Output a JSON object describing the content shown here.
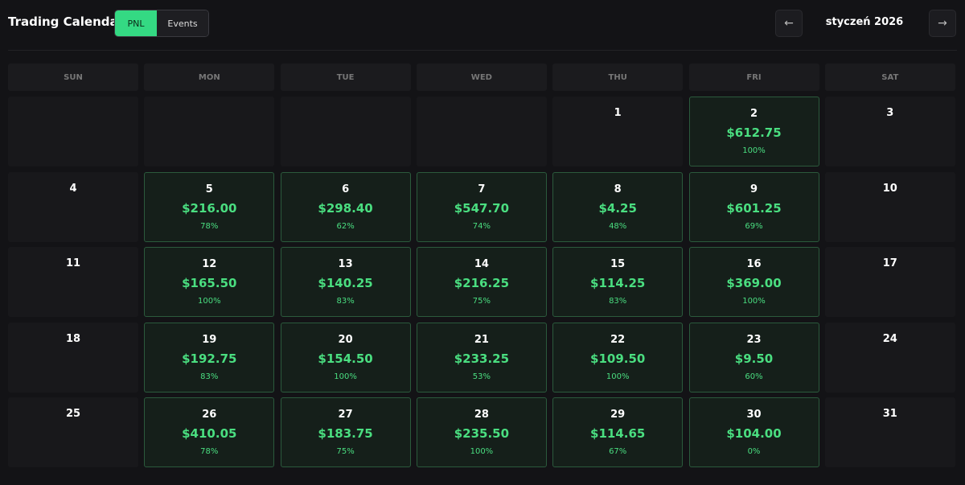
{
  "header": {
    "title": "Trading Calendar",
    "tabs": [
      "PNL",
      "Events"
    ],
    "active_tab": 0,
    "prev": "←",
    "next": "→",
    "month": "styczeń 2026"
  },
  "calendar": {
    "weekdays": [
      "SUN",
      "MON",
      "TUE",
      "WED",
      "THU",
      "FRI",
      "SAT"
    ],
    "weeks": [
      [
        null,
        null,
        null,
        null,
        {
          "day": 1
        },
        {
          "day": 2,
          "pnl": "$612.75",
          "rate": "100%"
        },
        {
          "day": 3
        }
      ],
      [
        {
          "day": 4
        },
        {
          "day": 5,
          "pnl": "$216.00",
          "rate": "78%"
        },
        {
          "day": 6,
          "pnl": "$298.40",
          "rate": "62%"
        },
        {
          "day": 7,
          "pnl": "$547.70",
          "rate": "74%"
        },
        {
          "day": 8,
          "pnl": "$4.25",
          "rate": "48%"
        },
        {
          "day": 9,
          "pnl": "$601.25",
          "rate": "69%"
        },
        {
          "day": 10
        }
      ],
      [
        {
          "day": 11
        },
        {
          "day": 12,
          "pnl": "$165.50",
          "rate": "100%"
        },
        {
          "day": 13,
          "pnl": "$140.25",
          "rate": "83%"
        },
        {
          "day": 14,
          "pnl": "$216.25",
          "rate": "75%"
        },
        {
          "day": 15,
          "pnl": "$114.25",
          "rate": "83%"
        },
        {
          "day": 16,
          "pnl": "$369.00",
          "rate": "100%"
        },
        {
          "day": 17
        }
      ],
      [
        {
          "day": 18
        },
        {
          "day": 19,
          "pnl": "$192.75",
          "rate": "83%"
        },
        {
          "day": 20,
          "pnl": "$154.50",
          "rate": "100%"
        },
        {
          "day": 21,
          "pnl": "$233.25",
          "rate": "53%"
        },
        {
          "day": 22,
          "pnl": "$109.50",
          "rate": "100%"
        },
        {
          "day": 23,
          "pnl": "$9.50",
          "rate": "60%"
        },
        {
          "day": 24
        }
      ],
      [
        {
          "day": 25
        },
        {
          "day": 26,
          "pnl": "$410.05",
          "rate": "78%"
        },
        {
          "day": 27,
          "pnl": "$183.75",
          "rate": "75%"
        },
        {
          "day": 28,
          "pnl": "$235.50",
          "rate": "100%"
        },
        {
          "day": 29,
          "pnl": "$114.65",
          "rate": "67%"
        },
        {
          "day": 30,
          "pnl": "$104.00",
          "rate": "0%"
        },
        {
          "day": 31
        }
      ]
    ]
  }
}
